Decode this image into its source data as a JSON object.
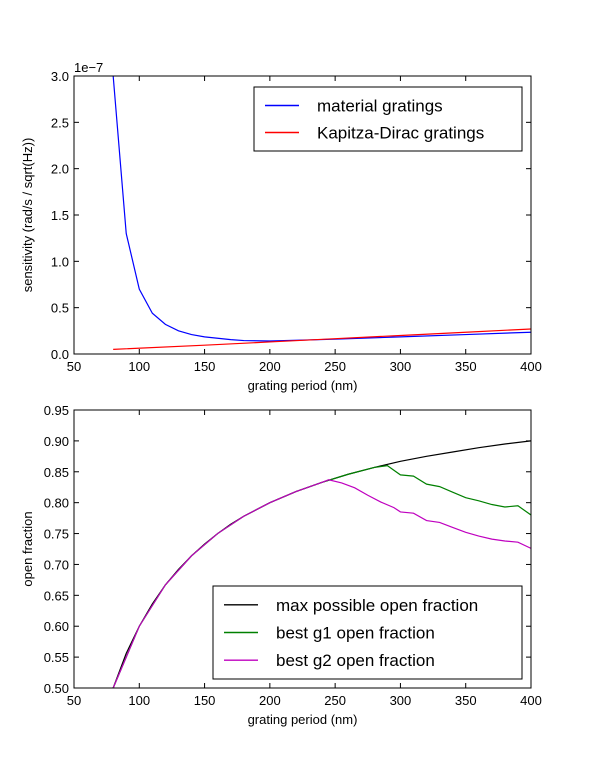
{
  "chart_data": [
    {
      "type": "line",
      "xlabel": "grating period (nm)",
      "ylabel": "sensitivity (rad/s / sqrt(Hz))",
      "y_offset_label": "1e−7",
      "xlim": [
        50,
        400
      ],
      "ylim": [
        0.0,
        3.0
      ],
      "y_scale_note": "values shown in units of 1e-7",
      "xticks": [
        "50",
        "100",
        "150",
        "200",
        "250",
        "300",
        "350",
        "400"
      ],
      "yticks": [
        "0.0",
        "0.5",
        "1.0",
        "1.5",
        "2.0",
        "2.5",
        "3.0"
      ],
      "legend_position": "top-right",
      "grid": false,
      "series": [
        {
          "name": "material gratings",
          "color": "#0000ff",
          "x": [
            80,
            90,
            100,
            110,
            120,
            130,
            140,
            150,
            160,
            170,
            180,
            200,
            250,
            300,
            350,
            400
          ],
          "y": [
            3.0,
            1.3,
            0.7,
            0.44,
            0.32,
            0.25,
            0.21,
            0.185,
            0.17,
            0.155,
            0.145,
            0.14,
            0.16,
            0.185,
            0.21,
            0.235
          ]
        },
        {
          "name": "Kapitza-Dirac gratings",
          "color": "#ff0000",
          "x": [
            80,
            150,
            200,
            250,
            300,
            350,
            400
          ],
          "y": [
            0.05,
            0.095,
            0.13,
            0.165,
            0.2,
            0.235,
            0.27
          ]
        }
      ]
    },
    {
      "type": "line",
      "xlabel": "grating period (nm)",
      "ylabel": "open fraction",
      "xlim": [
        50,
        400
      ],
      "ylim": [
        0.5,
        0.95
      ],
      "xticks": [
        "50",
        "100",
        "150",
        "200",
        "250",
        "300",
        "350",
        "400"
      ],
      "yticks": [
        "0.50",
        "0.55",
        "0.60",
        "0.65",
        "0.70",
        "0.75",
        "0.80",
        "0.85",
        "0.90",
        "0.95"
      ],
      "legend_position": "bottom-right",
      "grid": false,
      "series": [
        {
          "name": "max possible open fraction",
          "color": "#000000",
          "x": [
            80,
            90,
            100,
            110,
            120,
            130,
            140,
            150,
            160,
            170,
            180,
            190,
            200,
            220,
            240,
            260,
            280,
            300,
            320,
            340,
            360,
            380,
            400
          ],
          "y": [
            0.5,
            0.556,
            0.6,
            0.636,
            0.667,
            0.692,
            0.714,
            0.733,
            0.75,
            0.765,
            0.778,
            0.789,
            0.8,
            0.818,
            0.833,
            0.846,
            0.857,
            0.867,
            0.875,
            0.882,
            0.889,
            0.895,
            0.9
          ]
        },
        {
          "name": "best g1 open fraction",
          "color": "#008000",
          "x": [
            80,
            100,
            120,
            140,
            160,
            180,
            200,
            220,
            240,
            260,
            280,
            290,
            300,
            310,
            320,
            330,
            340,
            350,
            360,
            370,
            380,
            390,
            400
          ],
          "y": [
            0.5,
            0.6,
            0.667,
            0.714,
            0.75,
            0.778,
            0.8,
            0.818,
            0.833,
            0.846,
            0.857,
            0.86,
            0.845,
            0.843,
            0.83,
            0.826,
            0.817,
            0.808,
            0.803,
            0.797,
            0.793,
            0.795,
            0.78
          ]
        },
        {
          "name": "best g2 open fraction",
          "color": "#bf00bf",
          "x": [
            80,
            100,
            120,
            140,
            160,
            180,
            200,
            220,
            240,
            245,
            255,
            265,
            275,
            285,
            295,
            300,
            310,
            320,
            330,
            340,
            350,
            360,
            370,
            380,
            390,
            400
          ],
          "y": [
            0.5,
            0.6,
            0.667,
            0.714,
            0.75,
            0.778,
            0.8,
            0.818,
            0.833,
            0.837,
            0.832,
            0.824,
            0.812,
            0.801,
            0.792,
            0.785,
            0.783,
            0.771,
            0.768,
            0.76,
            0.752,
            0.746,
            0.741,
            0.738,
            0.736,
            0.726
          ]
        }
      ]
    }
  ]
}
